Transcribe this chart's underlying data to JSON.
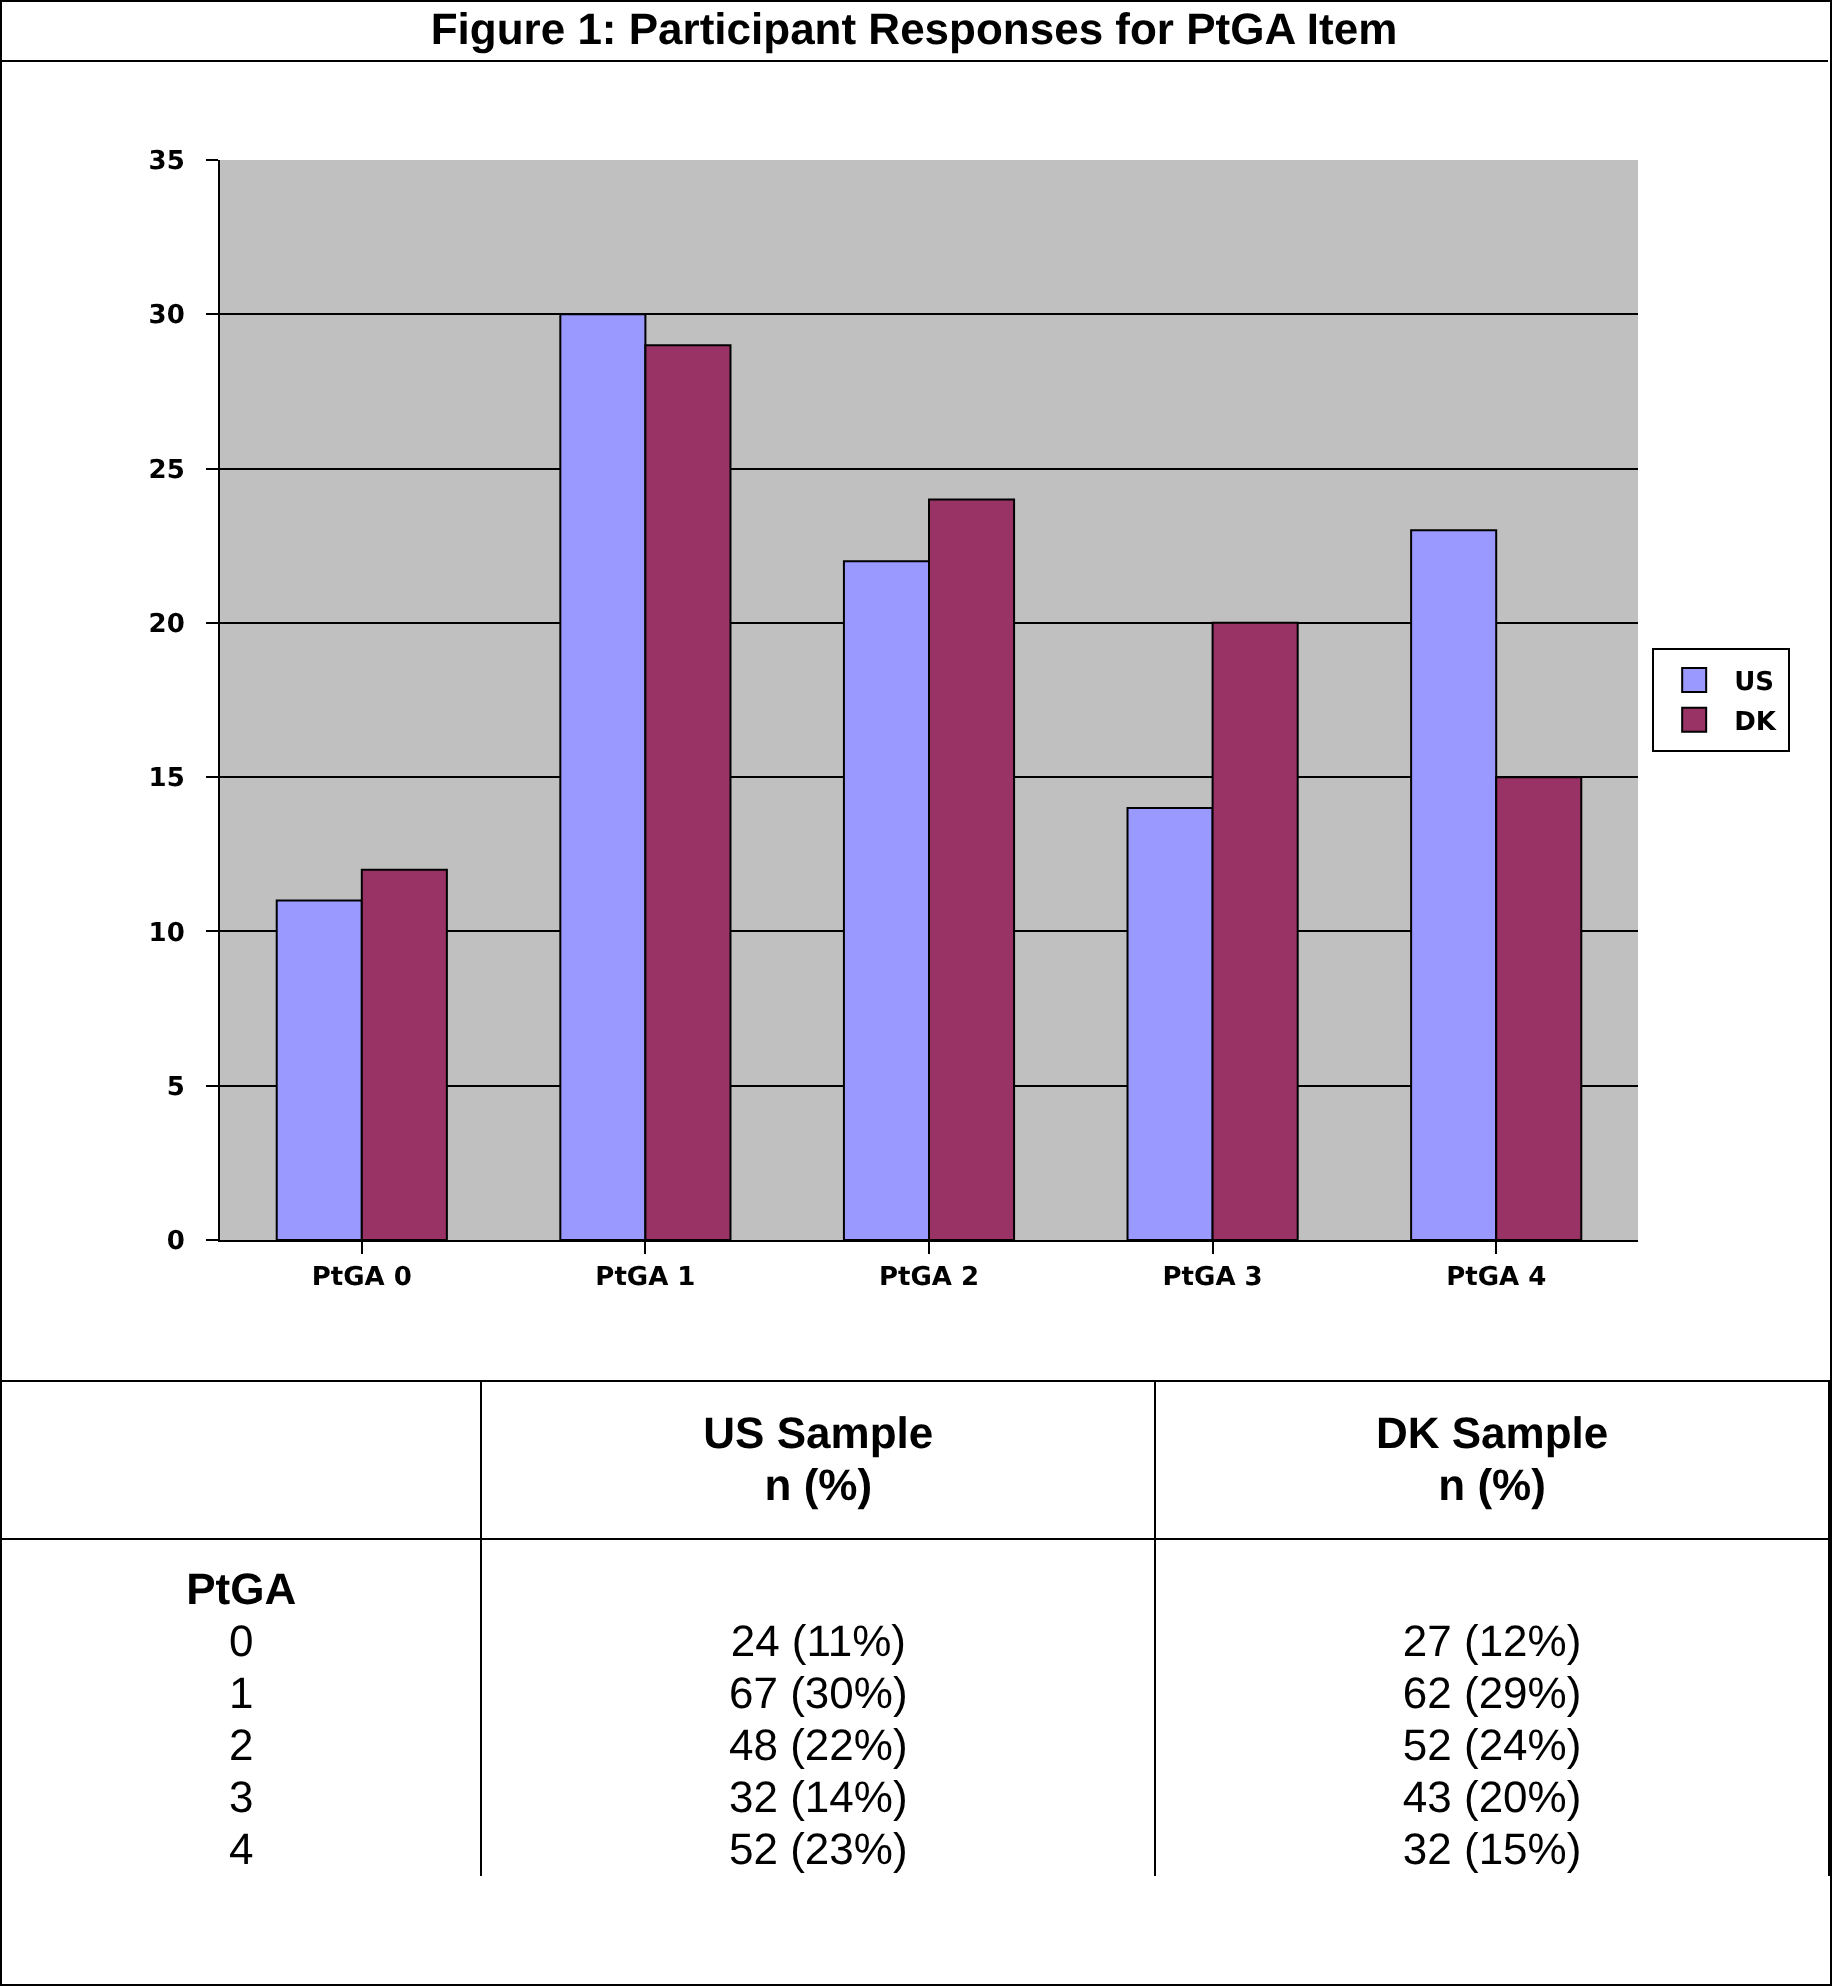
{
  "chart_data": {
    "type": "bar",
    "title": "Figure 1: Participant Responses for PtGA Item",
    "categories": [
      "PtGA 0",
      "PtGA 1",
      "PtGA 2",
      "PtGA 3",
      "PtGA 4"
    ],
    "series": [
      {
        "name": "US",
        "color": "#9999ff",
        "values": [
          11,
          30,
          22,
          14,
          23
        ]
      },
      {
        "name": "DK",
        "color": "#993366",
        "values": [
          12,
          29,
          24,
          20,
          15
        ]
      }
    ],
    "ylim": [
      0,
      35
    ],
    "yticks": [
      0,
      5,
      10,
      15,
      20,
      25,
      30,
      35
    ],
    "grid": "y",
    "legend": "right",
    "annotations": [
      "US Sample\nn (%)",
      "DK Sample\nn (%)",
      "PtGA",
      "0",
      "24 (11%)",
      "27 (12%)",
      "1",
      "67 (30%)",
      "62 (29%)",
      "2",
      "48 (22%)",
      "52 (24%)",
      "3",
      "32 (14%)",
      "43 (20%)",
      "4",
      "52 (23%)",
      "32 (15%)"
    ]
  }
}
